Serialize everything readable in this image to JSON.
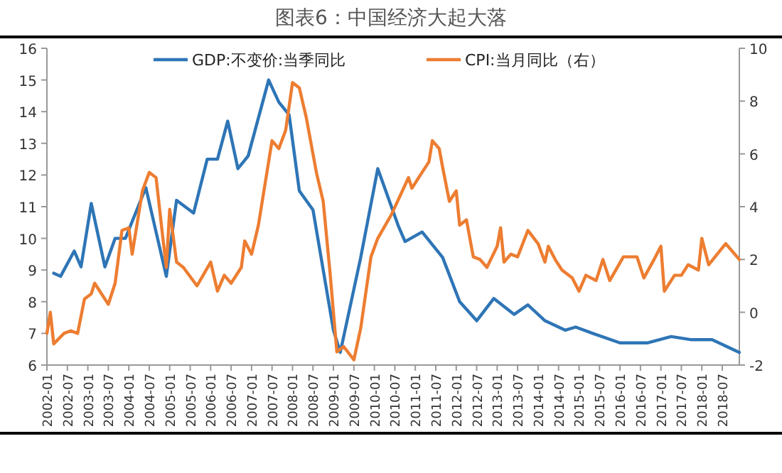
{
  "chart_data": {
    "type": "line",
    "title": "图表6：中国经济大起大落",
    "xlim": [
      "2002-01",
      "2018-12"
    ],
    "xticks": [
      "2002-01",
      "2002-07",
      "2003-01",
      "2003-07",
      "2004-01",
      "2004-07",
      "2005-01",
      "2005-07",
      "2006-01",
      "2006-07",
      "2007-01",
      "2007-07",
      "2008-01",
      "2008-07",
      "2009-01",
      "2009-07",
      "2010-01",
      "2010-07",
      "2011-01",
      "2011-07",
      "2012-01",
      "2012-07",
      "2013-01",
      "2013-07",
      "2014-01",
      "2014-07",
      "2015-01",
      "2015-07",
      "2016-01",
      "2016-07",
      "2017-01",
      "2017-07",
      "2018-01",
      "2018-07"
    ],
    "ylim": [
      6,
      16
    ],
    "yticks": [
      6,
      7,
      8,
      9,
      10,
      11,
      12,
      13,
      14,
      15,
      16
    ],
    "y2lim": [
      -2,
      10
    ],
    "y2ticks": [
      -2,
      0,
      2,
      4,
      6,
      8,
      10
    ],
    "legend": "top",
    "grid": false,
    "series": [
      {
        "name": "GDP:不变价:当季同比",
        "color": "#2e75b6",
        "x": [
          "2002-03",
          "2002-05",
          "2002-09",
          "2002-11",
          "2003-02",
          "2003-06",
          "2003-09",
          "2003-12",
          "2004-06",
          "2004-12",
          "2005-03",
          "2005-08",
          "2005-12",
          "2006-03",
          "2006-06",
          "2006-09",
          "2006-12",
          "2007-06",
          "2007-09",
          "2007-12",
          "2008-03",
          "2008-07",
          "2009-01",
          "2009-03",
          "2009-09",
          "2010-02",
          "2010-08",
          "2010-10",
          "2011-03",
          "2011-09",
          "2012-02",
          "2012-07",
          "2012-12",
          "2013-06",
          "2013-10",
          "2014-03",
          "2014-09",
          "2014-12",
          "2015-05",
          "2016-01",
          "2016-09",
          "2017-04",
          "2017-10",
          "2018-04",
          "2018-12"
        ],
        "values": [
          8.9,
          8.8,
          9.6,
          9.1,
          11.1,
          9.1,
          10.0,
          10.0,
          11.6,
          8.8,
          11.2,
          10.8,
          12.5,
          12.5,
          13.7,
          12.2,
          12.6,
          15.0,
          14.3,
          13.9,
          11.5,
          10.9,
          7.1,
          6.4,
          9.4,
          12.2,
          10.4,
          9.9,
          10.2,
          9.4,
          8.0,
          7.4,
          8.1,
          7.6,
          7.9,
          7.4,
          7.1,
          7.2,
          7.0,
          6.7,
          6.7,
          6.9,
          6.8,
          6.8,
          6.4
        ]
      },
      {
        "name": "CPI:当月同比（右）",
        "color": "#ed7d31",
        "axis": "y2",
        "x": [
          "2002-01",
          "2002-02",
          "2002-03",
          "2002-06",
          "2002-08",
          "2002-10",
          "2002-12",
          "2003-02",
          "2003-03",
          "2003-07",
          "2003-09",
          "2003-11",
          "2004-01",
          "2004-02",
          "2004-05",
          "2004-07",
          "2004-09",
          "2004-11",
          "2004-12",
          "2005-01",
          "2005-03",
          "2005-05",
          "2005-09",
          "2006-01",
          "2006-03",
          "2006-05",
          "2006-07",
          "2006-10",
          "2006-11",
          "2007-01",
          "2007-03",
          "2007-07",
          "2007-09",
          "2007-11",
          "2008-01",
          "2008-03",
          "2008-05",
          "2008-08",
          "2008-10",
          "2008-12",
          "2009-02",
          "2009-04",
          "2009-07",
          "2009-09",
          "2009-12",
          "2010-02",
          "2010-06",
          "2010-11",
          "2010-12",
          "2011-03",
          "2011-05",
          "2011-06",
          "2011-08",
          "2011-09",
          "2011-11",
          "2012-01",
          "2012-02",
          "2012-04",
          "2012-06",
          "2012-08",
          "2012-10",
          "2013-01",
          "2013-02",
          "2013-03",
          "2013-05",
          "2013-07",
          "2013-10",
          "2014-01",
          "2014-03",
          "2014-04",
          "2014-06",
          "2014-08",
          "2014-11",
          "2015-01",
          "2015-03",
          "2015-06",
          "2015-08",
          "2015-10",
          "2016-02",
          "2016-06",
          "2016-08",
          "2016-11",
          "2017-01",
          "2017-02",
          "2017-05",
          "2017-07",
          "2017-09",
          "2017-12",
          "2018-01",
          "2018-03",
          "2018-08",
          "2018-12"
        ],
        "values": [
          -0.8,
          0.0,
          -1.2,
          -0.8,
          -0.7,
          -0.8,
          0.5,
          0.7,
          1.1,
          0.3,
          1.1,
          3.1,
          3.2,
          2.2,
          4.6,
          5.3,
          5.1,
          2.8,
          1.7,
          3.9,
          1.9,
          1.7,
          1.0,
          1.9,
          0.8,
          1.4,
          1.1,
          1.7,
          2.7,
          2.2,
          3.3,
          6.5,
          6.2,
          6.9,
          8.7,
          8.5,
          7.4,
          5.3,
          4.2,
          1.5,
          -1.5,
          -1.3,
          -1.8,
          -0.6,
          2.1,
          2.8,
          3.7,
          5.1,
          4.7,
          5.3,
          5.7,
          6.5,
          6.2,
          5.5,
          4.2,
          4.6,
          3.3,
          3.5,
          2.1,
          2.0,
          1.7,
          2.5,
          3.2,
          1.9,
          2.2,
          2.1,
          3.1,
          2.6,
          1.9,
          2.5,
          2.0,
          1.6,
          1.3,
          0.8,
          1.4,
          1.2,
          2.0,
          1.2,
          2.1,
          2.1,
          1.3,
          2.0,
          2.5,
          0.8,
          1.4,
          1.4,
          1.8,
          1.6,
          2.8,
          1.8,
          2.6,
          2.0
        ]
      }
    ]
  }
}
